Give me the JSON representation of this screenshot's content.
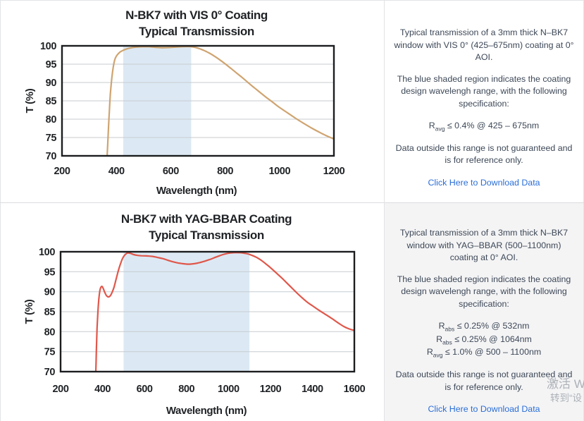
{
  "chart_data": [
    {
      "type": "line",
      "title": [
        "N-BK7 with VIS 0° Coating",
        "Typical Transmission"
      ],
      "xlabel": "Wavelength (nm)",
      "ylabel": "T (%)",
      "xlim": [
        200,
        1200
      ],
      "ylim": [
        70,
        100
      ],
      "xticks": [
        "200",
        "400",
        "600",
        "800",
        "1000",
        "1200"
      ],
      "yticks": [
        "70",
        "75",
        "80",
        "85",
        "90",
        "95",
        "100"
      ],
      "grid": "horizontal",
      "legend": "none",
      "band": {
        "x0": 425,
        "x1": 675,
        "color": "#dce9f4"
      },
      "series": [
        {
          "color": "#cfa470",
          "points": [
            [
              362,
              66
            ],
            [
              366,
              70
            ],
            [
              370,
              76
            ],
            [
              374,
              82
            ],
            [
              378,
              87
            ],
            [
              383,
              91
            ],
            [
              388,
              94
            ],
            [
              394,
              96.2
            ],
            [
              400,
              97.2
            ],
            [
              410,
              98.1
            ],
            [
              420,
              98.6
            ],
            [
              432,
              99.0
            ],
            [
              445,
              99.3
            ],
            [
              460,
              99.55
            ],
            [
              480,
              99.7
            ],
            [
              500,
              99.78
            ],
            [
              520,
              99.75
            ],
            [
              545,
              99.6
            ],
            [
              570,
              99.5
            ],
            [
              595,
              99.55
            ],
            [
              620,
              99.68
            ],
            [
              645,
              99.78
            ],
            [
              668,
              99.8
            ],
            [
              688,
              99.6
            ],
            [
              705,
              99.25
            ],
            [
              722,
              98.75
            ],
            [
              740,
              98.1
            ],
            [
              760,
              97.2
            ],
            [
              780,
              96.2
            ],
            [
              800,
              95.1
            ],
            [
              822,
              93.8
            ],
            [
              845,
              92.4
            ],
            [
              870,
              90.9
            ],
            [
              895,
              89.3
            ],
            [
              920,
              87.8
            ],
            [
              945,
              86.3
            ],
            [
              970,
              84.9
            ],
            [
              1000,
              83.2
            ],
            [
              1030,
              81.7
            ],
            [
              1060,
              80.2
            ],
            [
              1090,
              78.8
            ],
            [
              1120,
              77.5
            ],
            [
              1150,
              76.3
            ],
            [
              1175,
              75.4
            ],
            [
              1200,
              74.6
            ]
          ]
        }
      ]
    },
    {
      "type": "line",
      "title": [
        "N-BK7 with YAG-BBAR Coating",
        "Typical Transmission"
      ],
      "xlabel": "Wavelength (nm)",
      "ylabel": "T (%)",
      "xlim": [
        200,
        1600
      ],
      "ylim": [
        70,
        100
      ],
      "xticks": [
        "200",
        "400",
        "600",
        "800",
        "1000",
        "1200",
        "1400",
        "1600"
      ],
      "yticks": [
        "70",
        "75",
        "80",
        "85",
        "90",
        "95",
        "100"
      ],
      "grid": "horizontal",
      "legend": "none",
      "band": {
        "x0": 500,
        "x1": 1100,
        "color": "#dce9f4"
      },
      "series": [
        {
          "color": "#e0574b",
          "points": [
            [
              364,
              64
            ],
            [
              368,
              70
            ],
            [
              371,
              76
            ],
            [
              374,
              81
            ],
            [
              378,
              85
            ],
            [
              382,
              88
            ],
            [
              387,
              90.2
            ],
            [
              392,
              91.1
            ],
            [
              398,
              91.3
            ],
            [
              404,
              90.7
            ],
            [
              411,
              89.8
            ],
            [
              419,
              89.0
            ],
            [
              428,
              88.7
            ],
            [
              437,
              89.0
            ],
            [
              446,
              89.9
            ],
            [
              455,
              91.2
            ],
            [
              465,
              93.2
            ],
            [
              476,
              95.4
            ],
            [
              487,
              97.2
            ],
            [
              497,
              98.5
            ],
            [
              508,
              99.3
            ],
            [
              520,
              99.7
            ],
            [
              533,
              99.6
            ],
            [
              548,
              99.3
            ],
            [
              565,
              99.1
            ],
            [
              585,
              99.0
            ],
            [
              610,
              98.95
            ],
            [
              635,
              98.85
            ],
            [
              660,
              98.6
            ],
            [
              685,
              98.3
            ],
            [
              710,
              97.9
            ],
            [
              735,
              97.5
            ],
            [
              760,
              97.2
            ],
            [
              785,
              97.0
            ],
            [
              810,
              96.9
            ],
            [
              835,
              97.0
            ],
            [
              860,
              97.25
            ],
            [
              885,
              97.6
            ],
            [
              910,
              98.05
            ],
            [
              935,
              98.55
            ],
            [
              960,
              99.05
            ],
            [
              985,
              99.45
            ],
            [
              1010,
              99.7
            ],
            [
              1035,
              99.8
            ],
            [
              1060,
              99.75
            ],
            [
              1085,
              99.55
            ],
            [
              1105,
              99.25
            ],
            [
              1130,
              98.7
            ],
            [
              1155,
              97.9
            ],
            [
              1180,
              96.9
            ],
            [
              1205,
              95.8
            ],
            [
              1230,
              94.6
            ],
            [
              1255,
              93.4
            ],
            [
              1280,
              92.1
            ],
            [
              1305,
              90.8
            ],
            [
              1330,
              89.5
            ],
            [
              1355,
              88.3
            ],
            [
              1380,
              87.2
            ],
            [
              1400,
              86.5
            ],
            [
              1430,
              85.4
            ],
            [
              1460,
              84.4
            ],
            [
              1490,
              83.4
            ],
            [
              1520,
              82.3
            ],
            [
              1550,
              81.3
            ],
            [
              1575,
              80.7
            ],
            [
              1600,
              80.3
            ]
          ]
        }
      ]
    }
  ],
  "info_panels": [
    {
      "p_intro": "Typical transmission of a 3mm thick N–BK7 window with VIS 0° (425–675nm) coating at 0° AOI.",
      "p_band": "The blue shaded region indicates the coating design wavelengh range, with the following specification:",
      "specs": [
        {
          "pre": "R",
          "sub": "avg",
          "post": " ≤ 0.4% @ 425 – 675nm"
        }
      ],
      "p_note": "Data outside this range is not guaranteed and is for reference only.",
      "link_label": "Click Here to Download Data"
    },
    {
      "p_intro": "Typical transmission of a 3mm thick N–BK7 window with YAG–BBAR (500–1100nm) coating at 0° AOI.",
      "p_band": "The blue shaded region indicates the coating design wavelengh range, with the following specification:",
      "specs": [
        {
          "pre": "R",
          "sub": "abs",
          "post": " ≤ 0.25% @ 532nm"
        },
        {
          "pre": "R",
          "sub": "abs",
          "post": " ≤ 0.25% @ 1064nm"
        },
        {
          "pre": "R",
          "sub": "avg",
          "post": " ≤ 1.0% @ 500 – 1100nm"
        }
      ],
      "p_note": "Data outside this range is not guaranteed and is for reference only.",
      "link_label": "Click Here to Download Data"
    }
  ],
  "watermark": {
    "line1": "激活 W",
    "line2": "转到“设"
  },
  "colors": {
    "vis_curve": "#cfa470",
    "yag_curve": "#e0574b",
    "band_blue": "#dce9f4",
    "link_blue": "#2a6ed7",
    "text_slate": "#3d4857"
  }
}
